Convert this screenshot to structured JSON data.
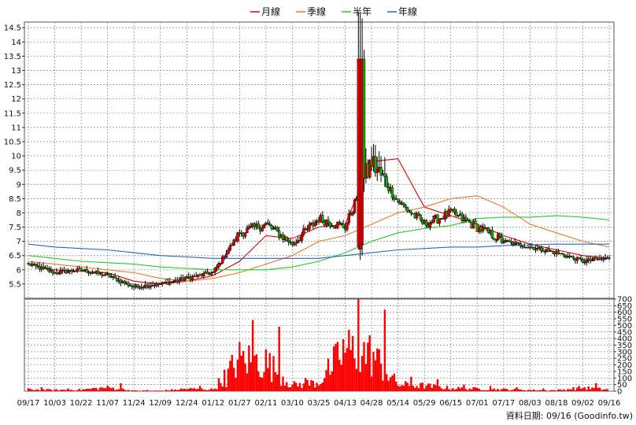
{
  "legend": [
    {
      "label": "月線",
      "color": "#dd0000"
    },
    {
      "label": "季線",
      "color": "#ee7722"
    },
    {
      "label": "半年",
      "color": "#22cc22"
    },
    {
      "label": "年線",
      "color": "#2266cc"
    }
  ],
  "credit": "資料日期: 09/16 (Goodinfo.tw)",
  "colors": {
    "up": "#dd0000",
    "down": "#11aa11",
    "wick": "#000000",
    "volume": "#ff0000",
    "grid": "#888888"
  },
  "chart_data": [
    {
      "type": "candlestick",
      "title": "",
      "x_tick_labels": [
        "09/17",
        "10/03",
        "10/22",
        "11/07",
        "11/24",
        "12/09",
        "12/24",
        "01/12",
        "01/27",
        "02/11",
        "03/10",
        "03/25",
        "04/13",
        "04/28",
        "05/14",
        "05/29",
        "06/15",
        "07/01",
        "07/17",
        "08/03",
        "08/18",
        "09/02",
        "09/16"
      ],
      "y_tick_labels": [
        "5.5",
        "6",
        "6.5",
        "7",
        "7.5",
        "8",
        "8.5",
        "9",
        "9.5",
        "10",
        "10.5",
        "11",
        "11.5",
        "12",
        "12.5",
        "13",
        "13.5",
        "14",
        "14.5"
      ],
      "ylim": [
        5,
        14.7
      ],
      "grid": true,
      "legend_position": "top",
      "close_approx_by_tick": [
        {
          "date": "09/17",
          "close": 6.2
        },
        {
          "date": "10/03",
          "close": 5.9
        },
        {
          "date": "10/22",
          "close": 6.0
        },
        {
          "date": "11/07",
          "close": 5.8
        },
        {
          "date": "11/24",
          "close": 5.4
        },
        {
          "date": "12/09",
          "close": 5.5
        },
        {
          "date": "12/24",
          "close": 5.7
        },
        {
          "date": "01/12",
          "close": 5.9
        },
        {
          "date": "01/27",
          "close": 7.3
        },
        {
          "date": "02/11",
          "close": 7.6
        },
        {
          "date": "03/10",
          "close": 6.9
        },
        {
          "date": "03/25",
          "close": 7.8
        },
        {
          "date": "04/13",
          "close": 7.5
        },
        {
          "date": "04/28",
          "close": 9.8
        },
        {
          "date": "05/14",
          "close": 8.4
        },
        {
          "date": "05/29",
          "close": 7.6
        },
        {
          "date": "06/15",
          "close": 8.0
        },
        {
          "date": "07/01",
          "close": 7.5
        },
        {
          "date": "07/17",
          "close": 7.0
        },
        {
          "date": "08/03",
          "close": 6.8
        },
        {
          "date": "08/18",
          "close": 6.6
        },
        {
          "date": "09/02",
          "close": 6.3
        },
        {
          "date": "09/16",
          "close": 6.4
        }
      ],
      "peak": {
        "date": "04/21",
        "high": 14.5,
        "close": 13.4
      },
      "moving_averages_approx": {
        "月線": [
          6.2,
          6.0,
          5.95,
          5.9,
          5.6,
          5.5,
          5.6,
          5.8,
          6.3,
          7.2,
          7.1,
          7.5,
          7.6,
          9.8,
          9.9,
          8.2,
          7.9,
          7.6,
          7.2,
          6.9,
          6.7,
          6.5,
          6.4
        ],
        "季線": [
          6.3,
          6.2,
          6.1,
          6.0,
          5.9,
          5.7,
          5.6,
          5.7,
          5.9,
          6.2,
          6.5,
          7.0,
          7.2,
          7.6,
          8.0,
          8.2,
          8.5,
          8.6,
          8.2,
          7.6,
          7.3,
          7.0,
          6.8
        ],
        "半年": [
          6.5,
          6.4,
          6.3,
          6.25,
          6.2,
          6.1,
          6.05,
          6.0,
          6.0,
          6.0,
          6.1,
          6.3,
          6.6,
          7.0,
          7.3,
          7.45,
          7.55,
          7.8,
          7.85,
          7.85,
          7.9,
          7.85,
          7.75
        ],
        "年線": [
          6.9,
          6.8,
          6.75,
          6.7,
          6.6,
          6.5,
          6.45,
          6.4,
          6.4,
          6.4,
          6.4,
          6.4,
          6.5,
          6.6,
          6.7,
          6.75,
          6.8,
          6.8,
          6.85,
          6.88,
          6.9,
          6.9,
          6.9
        ]
      }
    },
    {
      "type": "bar",
      "title": "",
      "y_tick_labels": [
        "0",
        "50",
        "100",
        "150",
        "200",
        "250",
        "300",
        "350",
        "400",
        "450",
        "500",
        "550",
        "600",
        "650",
        "700"
      ],
      "ylim": [
        0,
        700
      ],
      "volume_approx_by_tick": [
        {
          "date": "09/17",
          "volume": 30
        },
        {
          "date": "10/03",
          "volume": 20
        },
        {
          "date": "10/22",
          "volume": 25
        },
        {
          "date": "11/07",
          "volume": 60
        },
        {
          "date": "11/24",
          "volume": 10
        },
        {
          "date": "12/09",
          "volume": 8
        },
        {
          "date": "12/24",
          "volume": 40
        },
        {
          "date": "01/12",
          "volume": 30
        },
        {
          "date": "01/27",
          "volume": 540
        },
        {
          "date": "02/11",
          "volume": 490
        },
        {
          "date": "03/10",
          "volume": 100
        },
        {
          "date": "03/25",
          "volume": 150
        },
        {
          "date": "04/13",
          "volume": 700
        },
        {
          "date": "04/28",
          "volume": 620
        },
        {
          "date": "05/14",
          "volume": 110
        },
        {
          "date": "05/29",
          "volume": 90
        },
        {
          "date": "06/15",
          "volume": 50
        },
        {
          "date": "07/01",
          "volume": 40
        },
        {
          "date": "07/17",
          "volume": 30
        },
        {
          "date": "08/03",
          "volume": 20
        },
        {
          "date": "08/18",
          "volume": 15
        },
        {
          "date": "09/02",
          "volume": 60
        },
        {
          "date": "09/16",
          "volume": 25
        }
      ]
    }
  ]
}
